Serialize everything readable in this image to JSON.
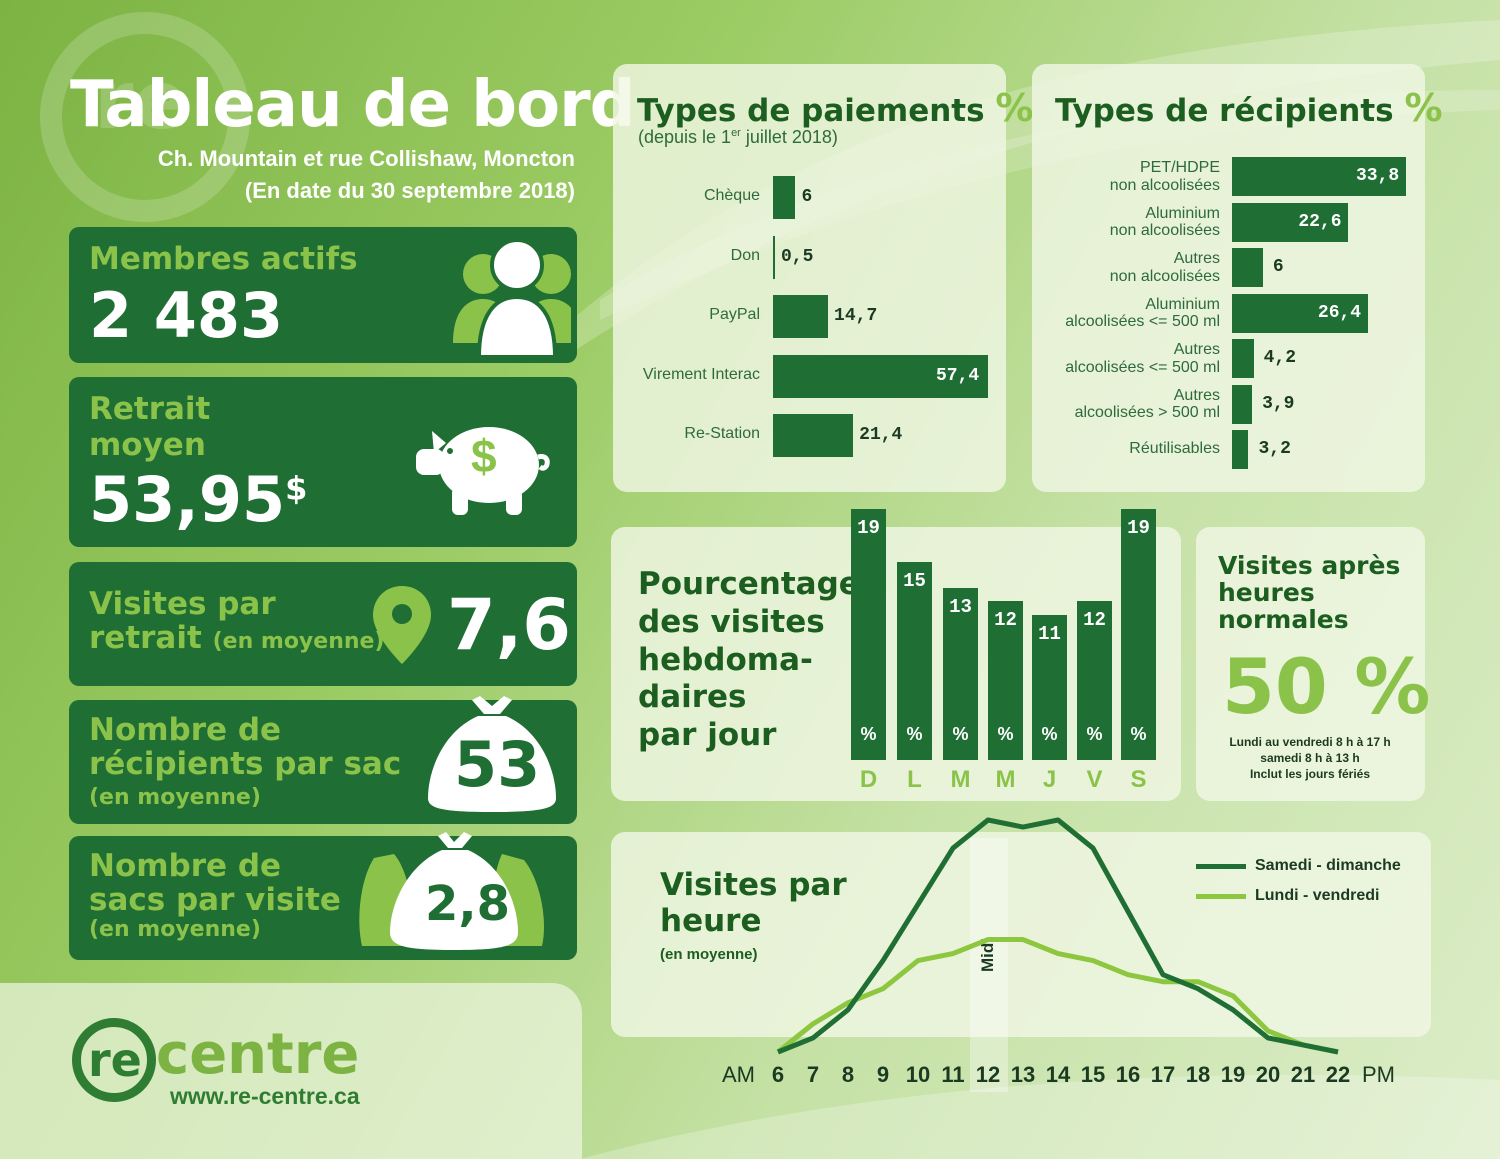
{
  "header": {
    "title": "Tableau de bord",
    "location": "Ch. Mountain et rue Collishaw, Moncton",
    "date": "(En date du 30 septembre 2018)"
  },
  "stats": {
    "members": {
      "label": "Membres actifs",
      "value": "2 483"
    },
    "withdrawal": {
      "label_line1": "Retrait",
      "label_line2": "moyen",
      "value": "53,95",
      "currency": "$",
      "icon_symbol": "$"
    },
    "visits": {
      "label_line1": "Visites par",
      "label_line2": "retrait",
      "label_note": "(en moyenne)",
      "value": "7,6"
    },
    "containers": {
      "label_line1": "Nombre de",
      "label_line2": "récipients par sac",
      "label_note": "(en moyenne)",
      "value": "53"
    },
    "bags": {
      "label_line1": "Nombre de",
      "label_line2": "sacs par visite",
      "label_note": "(en moyenne)",
      "value": "2,8"
    }
  },
  "payments": {
    "title": "Types de paiements",
    "pct": "%",
    "subtitle_pre": "(depuis le 1",
    "subtitle_sup": "er",
    "subtitle_post": " juillet 2018)"
  },
  "containers_panel": {
    "title": "Types de récipients",
    "pct": "%"
  },
  "weekly": {
    "title_lines": [
      "Pourcentage",
      "des visites",
      "hebdoma-",
      "daires",
      "par jour"
    ],
    "pct": "%"
  },
  "after_hours": {
    "title_lines": [
      "Visites après",
      "heures",
      "normales"
    ],
    "value": "50 %",
    "notes": [
      "Lundi au vendredi 8 h à 17 h",
      "samedi 8 h à 13 h",
      "Inclut les jours fériés"
    ]
  },
  "hourly": {
    "title_lines": [
      "Visites par",
      "heure"
    ],
    "subtitle": "(en moyenne)",
    "am": "AM",
    "pm": "PM",
    "noon_label": "Midi"
  },
  "footer": {
    "logo_re": "re",
    "logo_centre": "centre",
    "url": "www.re-centre.ca"
  },
  "colors": {
    "dark_green": "#1f6e34",
    "light_green": "#8bc34a",
    "line_light": "#8dc63f",
    "line_dark": "#1f6e34"
  },
  "icons": [
    "people-icon",
    "piggy-bank-icon",
    "location-pin-icon",
    "bag-icon",
    "bags-icon"
  ],
  "chart_data": [
    {
      "type": "bar",
      "orientation": "horizontal",
      "title": "Types de paiements %",
      "categories": [
        "Chèque",
        "Don",
        "PayPal",
        "Virement Interac",
        "Re-Station"
      ],
      "values": [
        6,
        0.5,
        14.7,
        57.4,
        21.4
      ],
      "value_labels": [
        "6",
        "0,5",
        "14,7",
        "57,4",
        "21,4"
      ]
    },
    {
      "type": "bar",
      "orientation": "horizontal",
      "title": "Types de récipients %",
      "categories": [
        [
          "PET/HDPE",
          "non alcoolisées"
        ],
        [
          "Aluminium",
          "non alcoolisées"
        ],
        [
          "Autres",
          "non alcoolisées"
        ],
        [
          "Aluminium",
          "alcoolisées <= 500 ml"
        ],
        [
          "Autres",
          "alcoolisées <= 500 ml"
        ],
        [
          "Autres",
          "alcoolisées > 500 ml"
        ],
        [
          "Réutilisables"
        ]
      ],
      "values": [
        33.8,
        22.6,
        6,
        26.4,
        4.2,
        3.9,
        3.2
      ],
      "value_labels": [
        "33,8",
        "22,6",
        "6",
        "26,4",
        "4,2",
        "3,9",
        "3,2"
      ]
    },
    {
      "type": "bar",
      "orientation": "vertical",
      "title": "Pourcentage des visites hebdomadaires par jour",
      "categories": [
        "D",
        "L",
        "M",
        "M",
        "J",
        "V",
        "S"
      ],
      "values": [
        19,
        15,
        13,
        12,
        11,
        12,
        19
      ]
    },
    {
      "type": "line",
      "title": "Visites par heure (en moyenne)",
      "x": [
        6,
        7,
        8,
        9,
        10,
        11,
        12,
        13,
        14,
        15,
        16,
        17,
        18,
        19,
        20,
        21,
        22
      ],
      "series": [
        {
          "name": "Samedi - dimanche",
          "color": "#1f6e34",
          "values": [
            0,
            2,
            6,
            13,
            21,
            29,
            33,
            32,
            33,
            29,
            20,
            11,
            9,
            6,
            2,
            1,
            0
          ]
        },
        {
          "name": "Lundi - vendredi",
          "color": "#8dc63f",
          "values": [
            0,
            4,
            7,
            9,
            13,
            14,
            16,
            16,
            14,
            13,
            11,
            10,
            10,
            8,
            3,
            1,
            0
          ]
        }
      ]
    }
  ]
}
